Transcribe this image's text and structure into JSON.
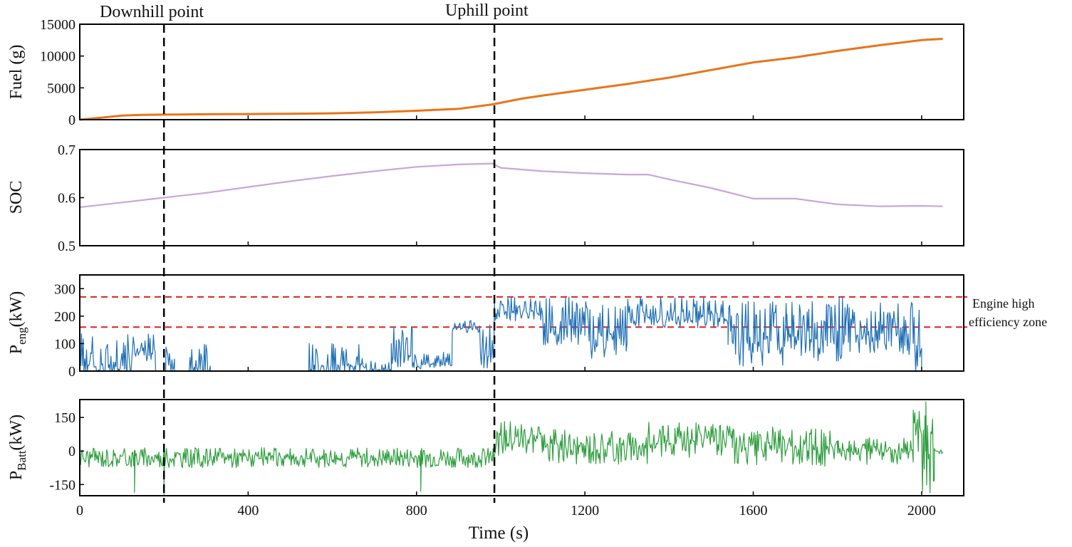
{
  "chart_data": [
    {
      "type": "line",
      "id": "fuel",
      "ylabel": "Fuel (g)",
      "ylim": [
        0,
        15000
      ],
      "yticks": [
        0,
        5000,
        10000,
        15000
      ],
      "xlim": [
        0,
        2100
      ],
      "series": [
        {
          "name": "Fuel",
          "color": "#E8751A",
          "x": [
            0,
            50,
            100,
            150,
            200,
            300,
            400,
            500,
            600,
            700,
            800,
            900,
            980,
            1050,
            1100,
            1200,
            1300,
            1400,
            1500,
            1600,
            1700,
            1800,
            1900,
            2000,
            2050
          ],
          "y": [
            0,
            300,
            650,
            750,
            800,
            850,
            880,
            920,
            1000,
            1150,
            1400,
            1700,
            2400,
            3300,
            3800,
            4700,
            5600,
            6600,
            7800,
            9000,
            9800,
            10800,
            11700,
            12500,
            12700
          ]
        }
      ]
    },
    {
      "type": "line",
      "id": "soc",
      "ylabel": "SOC",
      "ylim": [
        0.5,
        0.7
      ],
      "yticks": [
        0.5,
        0.6,
        0.7
      ],
      "xlim": [
        0,
        2100
      ],
      "series": [
        {
          "name": "SOC",
          "color": "#C9A6D8",
          "x": [
            0,
            100,
            200,
            300,
            400,
            500,
            600,
            700,
            800,
            900,
            980,
            1000,
            1100,
            1200,
            1300,
            1350,
            1400,
            1500,
            1600,
            1700,
            1800,
            1900,
            2000,
            2050
          ],
          "y": [
            0.58,
            0.59,
            0.6,
            0.61,
            0.622,
            0.634,
            0.645,
            0.655,
            0.664,
            0.669,
            0.671,
            0.662,
            0.655,
            0.651,
            0.648,
            0.648,
            0.638,
            0.62,
            0.598,
            0.598,
            0.586,
            0.582,
            0.583,
            0.582
          ]
        }
      ]
    },
    {
      "type": "line",
      "id": "peng",
      "ylabel_main": "P",
      "ylabel_sub": "eng",
      "ylabel_unit": "(kW)",
      "ylim": [
        0,
        350
      ],
      "yticks": [
        0,
        100,
        200,
        300
      ],
      "xlim": [
        0,
        2100
      ],
      "reference_lines": [
        270,
        160
      ],
      "reference_color": "#E02020",
      "zone_label_line1": "Engine high",
      "zone_label_line2": "efficiency zone",
      "series": [
        {
          "name": "P_eng",
          "color": "#1F6FB5",
          "segments": [
            {
              "x0": 0,
              "x1": 125,
              "base": 0,
              "amp": 150,
              "seed": 1,
              "density": 0.55
            },
            {
              "x0": 125,
              "x1": 180,
              "base": 60,
              "amp": 90,
              "seed": 2,
              "density": 0.5
            },
            {
              "x0": 180,
              "x1": 205,
              "base": 0,
              "amp": 0,
              "seed": 3,
              "density": 0
            },
            {
              "x0": 205,
              "x1": 225,
              "base": 0,
              "amp": 120,
              "seed": 4,
              "density": 0.6
            },
            {
              "x0": 225,
              "x1": 260,
              "base": 0,
              "amp": 0,
              "seed": 5,
              "density": 0
            },
            {
              "x0": 260,
              "x1": 310,
              "base": 0,
              "amp": 100,
              "seed": 6,
              "density": 0.35
            },
            {
              "x0": 310,
              "x1": 545,
              "base": 0,
              "amp": 0,
              "seed": 7,
              "density": 0
            },
            {
              "x0": 545,
              "x1": 680,
              "base": 0,
              "amp": 110,
              "seed": 8,
              "density": 0.4
            },
            {
              "x0": 680,
              "x1": 740,
              "base": 0,
              "amp": 40,
              "seed": 9,
              "density": 0.3
            },
            {
              "x0": 740,
              "x1": 790,
              "base": 40,
              "amp": 120,
              "seed": 10,
              "density": 0.6
            },
            {
              "x0": 790,
              "x1": 885,
              "base": 20,
              "amp": 50,
              "seed": 11,
              "density": 0.4
            },
            {
              "x0": 885,
              "x1": 950,
              "base": 150,
              "amp": 40,
              "seed": 12,
              "density": 0.5
            },
            {
              "x0": 950,
              "x1": 985,
              "base": 40,
              "amp": 140,
              "seed": 13,
              "density": 0.6
            },
            {
              "x0": 985,
              "x1": 1100,
              "base": 200,
              "amp": 70,
              "seed": 14,
              "density": 0.6
            },
            {
              "x0": 1100,
              "x1": 1200,
              "base": 130,
              "amp": 140,
              "seed": 15,
              "density": 0.7
            },
            {
              "x0": 1200,
              "x1": 1300,
              "base": 80,
              "amp": 180,
              "seed": 16,
              "density": 0.7
            },
            {
              "x0": 1300,
              "x1": 1540,
              "base": 180,
              "amp": 90,
              "seed": 17,
              "density": 0.6
            },
            {
              "x0": 1540,
              "x1": 1680,
              "base": 60,
              "amp": 200,
              "seed": 18,
              "density": 0.7
            },
            {
              "x0": 1680,
              "x1": 1820,
              "base": 80,
              "amp": 190,
              "seed": 19,
              "density": 0.7
            },
            {
              "x0": 1820,
              "x1": 1960,
              "base": 100,
              "amp": 150,
              "seed": 20,
              "density": 0.7
            },
            {
              "x0": 1960,
              "x1": 2000,
              "base": 40,
              "amp": 210,
              "seed": 21,
              "density": 0.7
            },
            {
              "x0": 2000,
              "x1": 2050,
              "base": 0,
              "amp": 0,
              "seed": 22,
              "density": 0
            }
          ]
        }
      ]
    },
    {
      "type": "line",
      "id": "pbatt",
      "ylabel_main": "P",
      "ylabel_sub": "Batt",
      "ylabel_unit": "(kW)",
      "ylim": [
        -200,
        230
      ],
      "yticks": [
        -150,
        0,
        150
      ],
      "xlim": [
        0,
        2100
      ],
      "xticks": [
        0,
        400,
        800,
        1200,
        1600,
        2000
      ],
      "xlabel": "Time (s)",
      "series": [
        {
          "name": "P_Batt",
          "color": "#2E9E3E",
          "segments": [
            {
              "x0": 0,
              "x1": 985,
              "base": -30,
              "amp": 45,
              "seed": 31,
              "density": 0.9
            },
            {
              "x0": 985,
              "x1": 1100,
              "base": 60,
              "amp": 80,
              "seed": 32,
              "density": 0.8
            },
            {
              "x0": 1100,
              "x1": 1350,
              "base": 20,
              "amp": 80,
              "seed": 33,
              "density": 0.8
            },
            {
              "x0": 1350,
              "x1": 1550,
              "base": 50,
              "amp": 80,
              "seed": 34,
              "density": 0.8
            },
            {
              "x0": 1550,
              "x1": 1800,
              "base": 20,
              "amp": 90,
              "seed": 35,
              "density": 0.8
            },
            {
              "x0": 1800,
              "x1": 1980,
              "base": 0,
              "amp": 60,
              "seed": 36,
              "density": 0.8
            },
            {
              "x0": 1980,
              "x1": 2030,
              "base": 0,
              "amp": 190,
              "seed": 37,
              "density": 1
            },
            {
              "x0": 2030,
              "x1": 2050,
              "base": 0,
              "amp": 20,
              "seed": 38,
              "density": 0.6
            }
          ],
          "spikes": [
            {
              "x": 130,
              "y": -185
            },
            {
              "x": 200,
              "y": -195
            },
            {
              "x": 810,
              "y": -180
            },
            {
              "x": 2010,
              "y": 220
            }
          ]
        }
      ]
    }
  ],
  "annotations": {
    "downhill_label": "Downhill point",
    "downhill_x": 200,
    "uphill_label": "Uphill point",
    "uphill_x": 985
  }
}
